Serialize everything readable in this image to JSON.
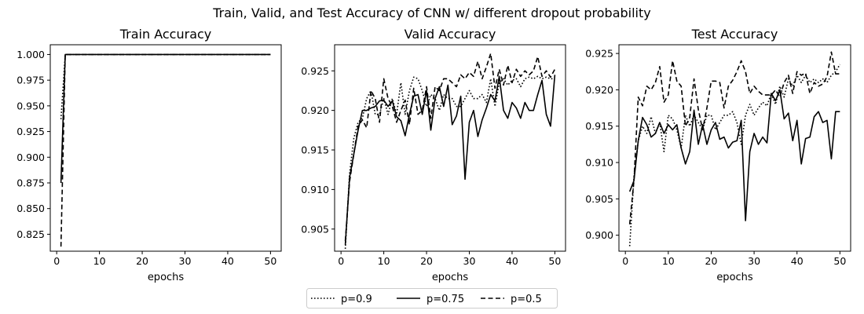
{
  "figure": {
    "suptitle": "Train, Valid, and Test Accuracy of CNN w/ different dropout probability"
  },
  "legend": {
    "placement": "bottom-center",
    "entries": [
      {
        "label": "p=0.9",
        "style": "dotted"
      },
      {
        "label": "p=0.75",
        "style": "solid"
      },
      {
        "label": "p=0.5",
        "style": "dashed"
      }
    ]
  },
  "chart_data": [
    {
      "type": "line",
      "title": "Train Accuracy",
      "xlabel": "epochs",
      "ylabel": "",
      "xlim": [
        -1.5,
        52.5
      ],
      "ylim": [
        0.8085,
        1.0095
      ],
      "xticks": [
        0,
        10,
        20,
        30,
        40,
        50
      ],
      "yticks": [
        0.825,
        0.85,
        0.875,
        0.9,
        0.925,
        0.95,
        0.975,
        1.0
      ],
      "ytick_labels": [
        "0.825",
        "0.850",
        "0.875",
        "0.900",
        "0.925",
        "0.950",
        "0.975",
        "1.000"
      ],
      "grid": false,
      "x_start": 1,
      "series": [
        {
          "name": "p=0.9",
          "style": "dotted",
          "values": [
            0.937,
            1.0,
            1.0,
            1.0,
            1.0,
            1.0,
            1.0,
            1.0,
            1.0,
            1.0,
            1.0,
            1.0,
            1.0,
            1.0,
            1.0,
            1.0,
            1.0,
            1.0,
            1.0,
            1.0,
            1.0,
            1.0,
            1.0,
            1.0,
            1.0,
            1.0,
            1.0,
            1.0,
            1.0,
            1.0,
            1.0,
            1.0,
            1.0,
            1.0,
            1.0,
            1.0,
            1.0,
            1.0,
            1.0,
            1.0,
            1.0,
            1.0,
            1.0,
            1.0,
            1.0,
            1.0,
            1.0,
            1.0,
            1.0,
            1.0
          ]
        },
        {
          "name": "p=0.75",
          "style": "solid",
          "values": [
            0.875,
            1.0,
            1.0,
            1.0,
            1.0,
            1.0,
            1.0,
            1.0,
            1.0,
            1.0,
            1.0,
            1.0,
            1.0,
            1.0,
            1.0,
            1.0,
            1.0,
            1.0,
            1.0,
            1.0,
            1.0,
            1.0,
            1.0,
            1.0,
            1.0,
            1.0,
            1.0,
            1.0,
            1.0,
            1.0,
            1.0,
            1.0,
            1.0,
            1.0,
            1.0,
            1.0,
            1.0,
            1.0,
            1.0,
            1.0,
            1.0,
            1.0,
            1.0,
            1.0,
            1.0,
            1.0,
            1.0,
            1.0,
            1.0,
            1.0
          ]
        },
        {
          "name": "p=0.5",
          "style": "dashed",
          "values": [
            0.813,
            1.0,
            1.0,
            1.0,
            1.0,
            1.0,
            1.0,
            1.0,
            1.0,
            1.0,
            1.0,
            1.0,
            1.0,
            1.0,
            1.0,
            1.0,
            1.0,
            1.0,
            1.0,
            1.0,
            1.0,
            1.0,
            1.0,
            1.0,
            1.0,
            1.0,
            1.0,
            1.0,
            1.0,
            1.0,
            1.0,
            1.0,
            1.0,
            1.0,
            1.0,
            1.0,
            1.0,
            1.0,
            1.0,
            1.0,
            1.0,
            1.0,
            1.0,
            1.0,
            1.0,
            1.0,
            1.0,
            1.0,
            1.0,
            1.0
          ]
        }
      ]
    },
    {
      "type": "line",
      "title": "Valid Accuracy",
      "xlabel": "epochs",
      "ylabel": "",
      "xlim": [
        -1.5,
        52.5
      ],
      "ylim": [
        0.9022,
        0.9283
      ],
      "xticks": [
        0,
        10,
        20,
        30,
        40,
        50
      ],
      "yticks": [
        0.905,
        0.91,
        0.915,
        0.92,
        0.925
      ],
      "ytick_labels": [
        "0.905",
        "0.910",
        "0.915",
        "0.920",
        "0.925"
      ],
      "grid": false,
      "x_start": 1,
      "series": [
        {
          "name": "p=0.9",
          "style": "dotted",
          "values": [
            0.9025,
            0.912,
            0.9165,
            0.9185,
            0.919,
            0.9215,
            0.9225,
            0.9195,
            0.9195,
            0.9215,
            0.9195,
            0.9215,
            0.9195,
            0.9235,
            0.9195,
            0.9225,
            0.9242,
            0.924,
            0.9225,
            0.9205,
            0.922,
            0.9215,
            0.92,
            0.922,
            0.9215,
            0.9215,
            0.9205,
            0.9205,
            0.9215,
            0.9225,
            0.9215,
            0.9215,
            0.922,
            0.921,
            0.924,
            0.9205,
            0.9235,
            0.924,
            0.9232,
            0.9238,
            0.924,
            0.923,
            0.924,
            0.9242,
            0.924,
            0.9243,
            0.924,
            0.9242,
            0.924,
            0.924
          ]
        },
        {
          "name": "p=0.75",
          "style": "solid",
          "values": [
            0.903,
            0.9115,
            0.9145,
            0.9175,
            0.92,
            0.92,
            0.9203,
            0.9205,
            0.9212,
            0.9213,
            0.9205,
            0.9212,
            0.9192,
            0.9187,
            0.9168,
            0.9195,
            0.9218,
            0.922,
            0.9195,
            0.9225,
            0.9175,
            0.9215,
            0.923,
            0.9205,
            0.9232,
            0.9182,
            0.9193,
            0.9218,
            0.9113,
            0.9185,
            0.92,
            0.9167,
            0.9188,
            0.9203,
            0.922,
            0.9212,
            0.9243,
            0.92,
            0.919,
            0.921,
            0.9203,
            0.919,
            0.921,
            0.92,
            0.92,
            0.922,
            0.9238,
            0.9195,
            0.918,
            0.9245
          ]
        },
        {
          "name": "p=0.5",
          "style": "dashed",
          "values": [
            0.9035,
            0.911,
            0.9145,
            0.918,
            0.9188,
            0.9178,
            0.9225,
            0.9215,
            0.9185,
            0.924,
            0.9215,
            0.9205,
            0.9185,
            0.92,
            0.9213,
            0.9182,
            0.9228,
            0.9195,
            0.92,
            0.923,
            0.919,
            0.923,
            0.9225,
            0.924,
            0.924,
            0.9235,
            0.923,
            0.9245,
            0.924,
            0.9248,
            0.9243,
            0.9262,
            0.924,
            0.9255,
            0.9272,
            0.9228,
            0.9252,
            0.9232,
            0.9257,
            0.9235,
            0.9252,
            0.9243,
            0.925,
            0.9245,
            0.925,
            0.9268,
            0.9243,
            0.925,
            0.9242,
            0.9252
          ]
        }
      ]
    },
    {
      "type": "line",
      "title": "Test Accuracy",
      "xlabel": "epochs",
      "ylabel": "",
      "xlim": [
        -1.5,
        52.5
      ],
      "ylim": [
        0.8978,
        0.9262
      ],
      "xticks": [
        0,
        10,
        20,
        30,
        40,
        50
      ],
      "yticks": [
        0.9,
        0.905,
        0.91,
        0.915,
        0.92,
        0.925
      ],
      "ytick_labels": [
        "0.900",
        "0.905",
        "0.910",
        "0.915",
        "0.920",
        "0.925"
      ],
      "grid": false,
      "x_start": 1,
      "series": [
        {
          "name": "p=0.9",
          "style": "dotted",
          "values": [
            0.8985,
            0.908,
            0.913,
            0.915,
            0.914,
            0.9163,
            0.914,
            0.9155,
            0.9115,
            0.9165,
            0.916,
            0.9145,
            0.912,
            0.9165,
            0.915,
            0.9165,
            0.9155,
            0.9145,
            0.9165,
            0.9165,
            0.9145,
            0.9155,
            0.9165,
            0.9165,
            0.917,
            0.9155,
            0.9125,
            0.9165,
            0.918,
            0.9165,
            0.9175,
            0.9183,
            0.9178,
            0.9195,
            0.918,
            0.9205,
            0.919,
            0.9215,
            0.9205,
            0.922,
            0.921,
            0.922,
            0.921,
            0.9215,
            0.921,
            0.9215,
            0.921,
            0.922,
            0.9225,
            0.9235
          ]
        },
        {
          "name": "p=0.75",
          "style": "solid",
          "values": [
            0.906,
            0.9075,
            0.913,
            0.9162,
            0.9152,
            0.9135,
            0.914,
            0.9155,
            0.914,
            0.9152,
            0.9145,
            0.9152,
            0.912,
            0.9098,
            0.9115,
            0.9172,
            0.9125,
            0.9152,
            0.9125,
            0.9145,
            0.9155,
            0.9132,
            0.9135,
            0.912,
            0.9128,
            0.913,
            0.9158,
            0.902,
            0.9115,
            0.914,
            0.9125,
            0.9135,
            0.9127,
            0.9195,
            0.9185,
            0.92,
            0.916,
            0.9168,
            0.913,
            0.9158,
            0.9098,
            0.9133,
            0.9135,
            0.9163,
            0.917,
            0.9155,
            0.9158,
            0.9105,
            0.917,
            0.917
          ]
        },
        {
          "name": "p=0.5",
          "style": "dashed",
          "values": [
            0.9015,
            0.9075,
            0.919,
            0.9178,
            0.9205,
            0.92,
            0.921,
            0.9232,
            0.9183,
            0.9193,
            0.924,
            0.9212,
            0.9205,
            0.915,
            0.9162,
            0.9215,
            0.9173,
            0.9145,
            0.9175,
            0.9212,
            0.9212,
            0.921,
            0.9175,
            0.9205,
            0.9213,
            0.9225,
            0.924,
            0.9225,
            0.9195,
            0.9205,
            0.9198,
            0.9193,
            0.9193,
            0.9193,
            0.92,
            0.919,
            0.921,
            0.922,
            0.9195,
            0.9225,
            0.922,
            0.9223,
            0.9195,
            0.921,
            0.9205,
            0.9208,
            0.9218,
            0.9252,
            0.9222,
            0.9222
          ]
        }
      ]
    }
  ]
}
